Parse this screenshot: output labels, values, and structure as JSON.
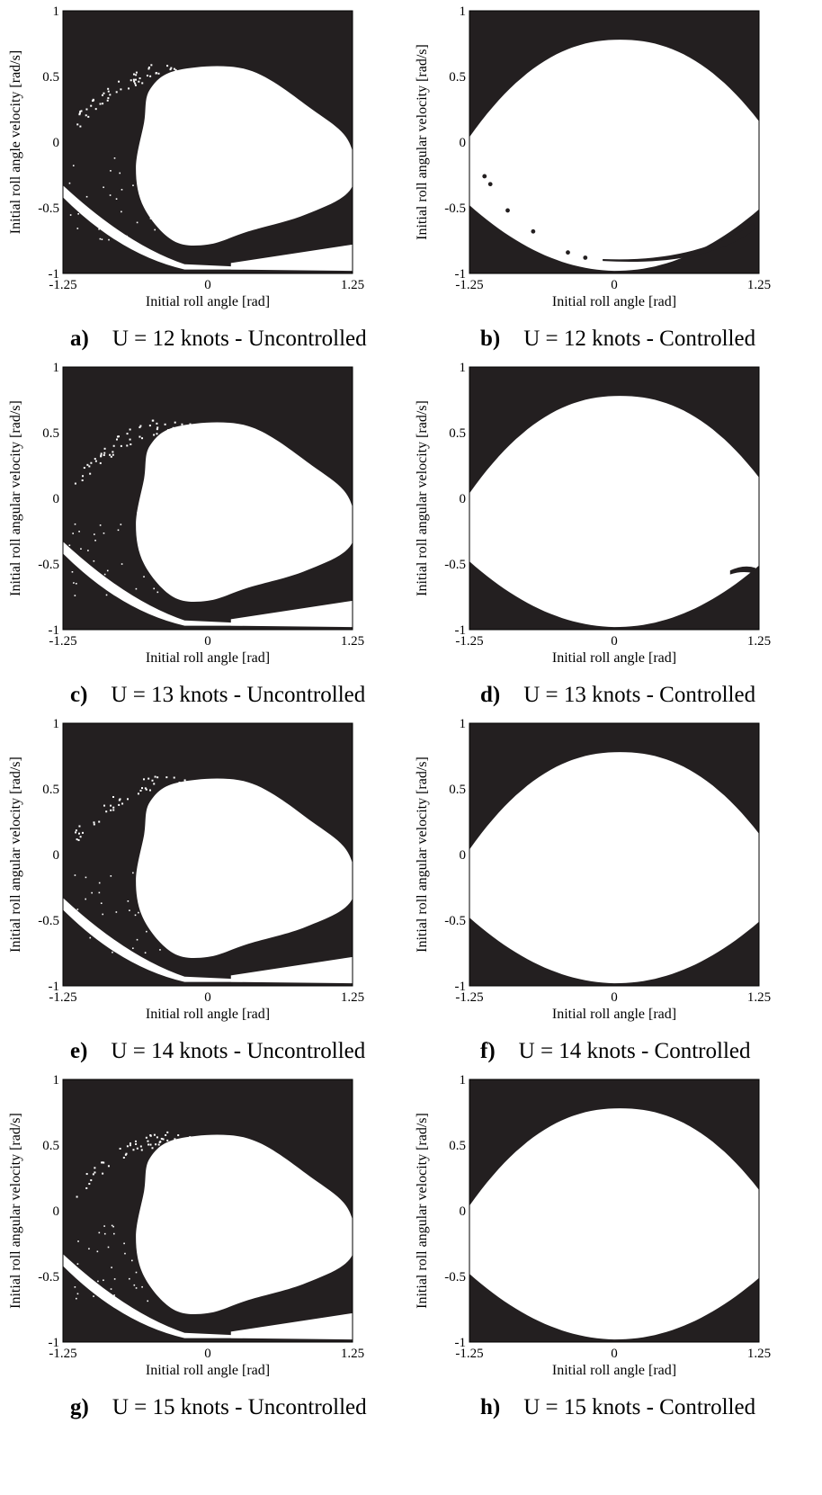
{
  "figure": {
    "panels": [
      {
        "letter": "a)",
        "caption": "U = 12 knots - Uncontrolled"
      },
      {
        "letter": "b)",
        "caption": "U = 12 knots - Controlled"
      },
      {
        "letter": "c)",
        "caption": "U = 13 knots - Uncontrolled"
      },
      {
        "letter": "d)",
        "caption": "U = 13 knots - Controlled"
      },
      {
        "letter": "e)",
        "caption": "U = 14 knots - Uncontrolled"
      },
      {
        "letter": "f)",
        "caption": "U = 14 knots - Controlled"
      },
      {
        "letter": "g)",
        "caption": "U = 15 knots - Uncontrolled"
      },
      {
        "letter": "h)",
        "caption": "U = 15 knots - Controlled"
      }
    ]
  },
  "chart_data": [
    {
      "type": "heatmap",
      "panel": "a)",
      "title": "U = 12 knots - Uncontrolled",
      "variant": "uncontrolled",
      "xlabel": "Initial roll angle [rad]",
      "ylabel": "Initial roll angle velocity [rad/s]",
      "xlim": [
        -1.25,
        1.25
      ],
      "ylim": [
        -1,
        1
      ],
      "xticks": [
        "-1.25",
        "0",
        "1.25"
      ],
      "yticks": [
        "-1",
        "-0.5",
        "0",
        "0.5",
        "1"
      ],
      "colors": {
        "safe": "#ffffff",
        "capsize": "#231f20"
      }
    },
    {
      "type": "heatmap",
      "panel": "b)",
      "title": "U = 12 knots - Controlled",
      "variant": "controlled",
      "xlabel": "Initial roll angle [rad]",
      "ylabel": "Initial roll angular velocity [rad/s]",
      "xlim": [
        -1.25,
        1.25
      ],
      "ylim": [
        -1,
        1
      ],
      "xticks": [
        "-1.25",
        "0",
        "1.25"
      ],
      "yticks": [
        "-1",
        "-0.5",
        "0",
        "0.5",
        "1"
      ],
      "colors": {
        "safe": "#ffffff",
        "capsize": "#231f20"
      },
      "isolated_points": [
        [
          -1.12,
          -0.26
        ],
        [
          -1.07,
          -0.32
        ],
        [
          -0.92,
          -0.52
        ],
        [
          -0.7,
          -0.68
        ],
        [
          -0.4,
          -0.84
        ],
        [
          -0.25,
          -0.88
        ]
      ]
    },
    {
      "type": "heatmap",
      "panel": "c)",
      "title": "U = 13 knots - Uncontrolled",
      "variant": "uncontrolled",
      "xlabel": "Initial roll angle [rad]",
      "ylabel": "Initial roll angular velocity [rad/s]",
      "xlim": [
        -1.25,
        1.25
      ],
      "ylim": [
        -1,
        1
      ],
      "xticks": [
        "-1.25",
        "0",
        "1.25"
      ],
      "yticks": [
        "-1",
        "-0.5",
        "0",
        "0.5",
        "1"
      ],
      "colors": {
        "safe": "#ffffff",
        "capsize": "#231f20"
      }
    },
    {
      "type": "heatmap",
      "panel": "d)",
      "title": "U = 13 knots - Controlled",
      "variant": "controlled",
      "xlabel": "Initial roll angle [rad]",
      "ylabel": "Initial roll angular velocity [rad/s]",
      "xlim": [
        -1.25,
        1.25
      ],
      "ylim": [
        -1,
        1
      ],
      "xticks": [
        "-1.25",
        "0",
        "1.25"
      ],
      "yticks": [
        "-1",
        "-0.5",
        "0",
        "0.5",
        "1"
      ],
      "colors": {
        "safe": "#ffffff",
        "capsize": "#231f20"
      }
    },
    {
      "type": "heatmap",
      "panel": "e)",
      "title": "U = 14 knots - Uncontrolled",
      "variant": "uncontrolled",
      "xlabel": "Initial roll angle [rad]",
      "ylabel": "Initial roll angular velocity [rad/s]",
      "xlim": [
        -1.25,
        1.25
      ],
      "ylim": [
        -1,
        1
      ],
      "xticks": [
        "-1.25",
        "0",
        "1.25"
      ],
      "yticks": [
        "-1",
        "-0.5",
        "0",
        "0.5",
        "1"
      ],
      "colors": {
        "safe": "#ffffff",
        "capsize": "#231f20"
      }
    },
    {
      "type": "heatmap",
      "panel": "f)",
      "title": "U = 14 knots - Controlled",
      "variant": "controlled",
      "xlabel": "Initial roll angle [rad]",
      "ylabel": "Initial roll angular velocity [rad/s]",
      "xlim": [
        -1.25,
        1.25
      ],
      "ylim": [
        -1,
        1
      ],
      "xticks": [
        "-1.25",
        "0",
        "1.25"
      ],
      "yticks": [
        "-1",
        "-0.5",
        "0",
        "0.5",
        "1"
      ],
      "colors": {
        "safe": "#ffffff",
        "capsize": "#231f20"
      }
    },
    {
      "type": "heatmap",
      "panel": "g)",
      "title": "U = 15 knots - Uncontrolled",
      "variant": "uncontrolled",
      "xlabel": "Initial roll angle [rad]",
      "ylabel": "Initial roll angular velocity [rad/s]",
      "xlim": [
        -1.25,
        1.25
      ],
      "ylim": [
        -1,
        1
      ],
      "xticks": [
        "-1.25",
        "0",
        "1.25"
      ],
      "yticks": [
        "-1",
        "-0.5",
        "0",
        "0.5",
        "1"
      ],
      "colors": {
        "safe": "#ffffff",
        "capsize": "#231f20"
      }
    },
    {
      "type": "heatmap",
      "panel": "h)",
      "title": "U = 15 knots - Controlled",
      "variant": "controlled",
      "xlabel": "Initial roll angle [rad]",
      "ylabel": "Initial roll angular velocity [rad/s]",
      "xlim": [
        -1.25,
        1.25
      ],
      "ylim": [
        -1,
        1
      ],
      "xticks": [
        "-1.25",
        "0",
        "1.25"
      ],
      "yticks": [
        "-1",
        "-0.5",
        "0",
        "0.5",
        "1"
      ],
      "colors": {
        "safe": "#ffffff",
        "capsize": "#231f20"
      }
    }
  ]
}
